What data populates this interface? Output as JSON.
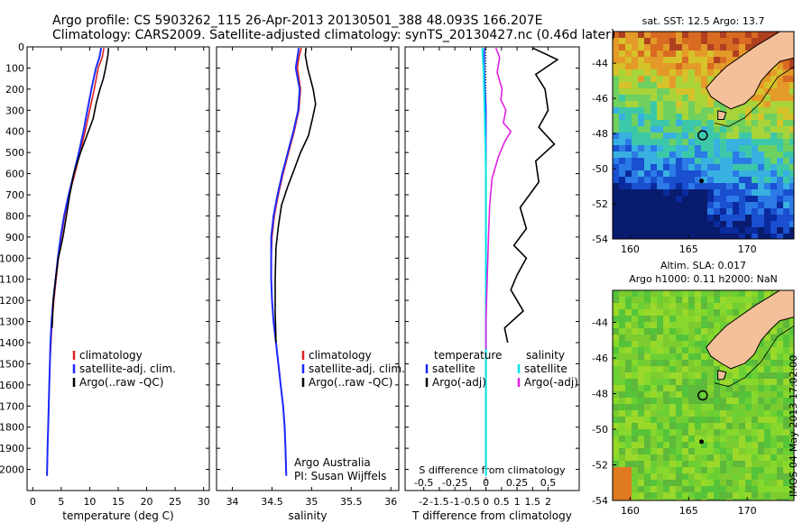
{
  "header": {
    "line1": "Argo profile: CS 5903262_115 26-Apr-2013 20130501_388 48.093S 166.207E",
    "line2": "Climatology: CARS2009. Satellite-adjusted climatology: synTS_20130427.nc (0.46d later)"
  },
  "stamp": "IMOS 04-May-2013 17:02:00",
  "colors": {
    "climatology": "#e02020",
    "satellite": "#1a2bff",
    "argo": "#000000",
    "t_diff_sat": "#00e6e6",
    "s_diff_argo": "#e020e0",
    "sst_warm": "#d4a820",
    "sst_cold": "#0a1a80",
    "sla_green": "#7ad02a",
    "land": "#f4c09a"
  },
  "chart_data": [
    {
      "type": "line",
      "id": "temperature",
      "xlabel": "temperature (deg C)",
      "ylim": [
        2100,
        0
      ],
      "xlim": [
        -1,
        31
      ],
      "xticks": [
        0,
        5,
        10,
        15,
        20,
        25,
        30
      ],
      "yticks": [
        0,
        100,
        200,
        300,
        400,
        500,
        600,
        700,
        800,
        900,
        1000,
        1100,
        1200,
        1300,
        1400,
        1500,
        1600,
        1700,
        1800,
        1900,
        2000
      ],
      "legend": [
        "climatology",
        "satellite-adj. clim.",
        "Argo(..raw -QC)"
      ],
      "series": [
        {
          "name": "climatology",
          "x": [
            12.5,
            12.2,
            11.5,
            10.8,
            10.0,
            9.2,
            8.3,
            7.4,
            6.4,
            5.6,
            5.0,
            4.5,
            4.1,
            3.7,
            3.4,
            3.2,
            3.0,
            2.9,
            2.8,
            2.7,
            2.6,
            2.5
          ],
          "y": [
            5,
            50,
            100,
            200,
            300,
            400,
            500,
            600,
            700,
            800,
            900,
            1000,
            1100,
            1200,
            1300,
            1400,
            1500,
            1600,
            1700,
            1800,
            1900,
            2030
          ]
        },
        {
          "name": "satellite-adj. clim.",
          "x": [
            12.0,
            11.7,
            11.1,
            10.3,
            9.6,
            8.9,
            8.1,
            7.2,
            6.3,
            5.5,
            4.9,
            4.4,
            4.0,
            3.6,
            3.3,
            3.1,
            3.0,
            2.9,
            2.8,
            2.7,
            2.6,
            2.5
          ],
          "y": [
            5,
            50,
            100,
            200,
            300,
            400,
            500,
            600,
            700,
            800,
            900,
            1000,
            1100,
            1200,
            1300,
            1400,
            1500,
            1600,
            1700,
            1800,
            1900,
            2030
          ]
        },
        {
          "name": "Argo(..raw -QC)",
          "x": [
            13.3,
            13.2,
            12.8,
            12.4,
            11.8,
            11.2,
            10.6,
            9.5,
            8.4,
            7.2,
            6.5,
            5.9,
            5.3,
            4.5,
            4.0,
            3.6,
            3.4
          ],
          "y": [
            5,
            40,
            100,
            150,
            200,
            260,
            340,
            420,
            500,
            600,
            700,
            800,
            900,
            1000,
            1100,
            1200,
            1330
          ]
        }
      ]
    },
    {
      "type": "line",
      "id": "salinity",
      "xlabel": "salinity",
      "ylim": [
        2100,
        0
      ],
      "xlim": [
        33.8,
        36.1
      ],
      "xticks": [
        34,
        34.5,
        35,
        35.5,
        36
      ],
      "legend": [
        "climatology",
        "satellite-adj. clim.",
        "Argo(..raw -QC)"
      ],
      "annotation": [
        "Argo Australia",
        "PI: Susan Wijffels"
      ],
      "series": [
        {
          "name": "climatology",
          "x": [
            34.87,
            34.84,
            34.82,
            34.86,
            34.84,
            34.78,
            34.71,
            34.64,
            34.58,
            34.53,
            34.5,
            34.49,
            34.49,
            34.5,
            34.52,
            34.55,
            34.58,
            34.61,
            34.64,
            34.66,
            34.67,
            34.68
          ],
          "y": [
            5,
            50,
            100,
            200,
            300,
            400,
            500,
            600,
            700,
            800,
            900,
            1000,
            1100,
            1200,
            1300,
            1400,
            1500,
            1600,
            1700,
            1800,
            1900,
            2030
          ]
        },
        {
          "name": "satellite-adj. clim.",
          "x": [
            34.84,
            34.82,
            34.8,
            34.85,
            34.83,
            34.77,
            34.7,
            34.63,
            34.57,
            34.52,
            34.49,
            34.49,
            34.49,
            34.5,
            34.52,
            34.55,
            34.58,
            34.61,
            34.64,
            34.66,
            34.67,
            34.68
          ],
          "y": [
            5,
            50,
            100,
            200,
            300,
            400,
            500,
            600,
            700,
            800,
            900,
            1000,
            1100,
            1200,
            1300,
            1400,
            1500,
            1600,
            1700,
            1800,
            1900,
            2030
          ]
        },
        {
          "name": "Argo(..raw -QC)",
          "x": [
            34.93,
            34.92,
            34.95,
            35.02,
            35.05,
            35.01,
            34.96,
            34.86,
            34.78,
            34.7,
            34.62,
            34.58,
            34.55,
            34.54,
            34.54,
            34.55
          ],
          "y": [
            5,
            40,
            100,
            200,
            270,
            340,
            420,
            500,
            580,
            660,
            750,
            850,
            950,
            1100,
            1250,
            1400
          ]
        }
      ]
    },
    {
      "type": "line",
      "id": "difference",
      "xlabel": "T difference from climatology",
      "xlabel_top": "S difference from climatology",
      "ylim": [
        2100,
        0
      ],
      "xlim": [
        -2.6,
        3.0
      ],
      "xticks_bottom": [
        -2,
        -1.5,
        -1,
        -0.5,
        0,
        0.5,
        1,
        1.5,
        2
      ],
      "xticks_top": [
        -0.5,
        -0.25,
        0,
        0.25,
        0.5
      ],
      "legend": [
        "temperature",
        "satellite",
        "Argo(-adj)",
        "salinity",
        "satellite",
        "Argo(-adj)"
      ],
      "series": [
        {
          "name": "temperature satellite",
          "axis": "T",
          "x": [
            -0.05,
            -0.05,
            -0.03,
            0.0,
            0.0,
            0.0,
            0.0,
            0.0,
            0.0,
            0.0
          ],
          "y": [
            5,
            100,
            200,
            300,
            500,
            700,
            1000,
            1400,
            1800,
            2030
          ]
        },
        {
          "name": "temperature Argo(-adj)",
          "axis": "T",
          "x": [
            1.5,
            2.3,
            1.6,
            1.9,
            2.0,
            1.7,
            2.2,
            1.6,
            1.7,
            1.1,
            1.3,
            0.9,
            1.3,
            1.0,
            0.8,
            1.2,
            0.6,
            0.7
          ],
          "y": [
            5,
            60,
            130,
            200,
            300,
            380,
            460,
            540,
            640,
            760,
            860,
            940,
            1000,
            1080,
            1150,
            1250,
            1330,
            1400
          ]
        },
        {
          "name": "salinity satellite",
          "axis": "S",
          "x": [
            -0.03,
            -0.02,
            -0.01,
            0.0,
            0.0,
            0.0,
            0.0
          ],
          "y": [
            5,
            100,
            300,
            600,
            1000,
            1500,
            2030
          ]
        },
        {
          "name": "salinity Argo(-adj)",
          "axis": "S",
          "x": [
            0.08,
            0.11,
            0.09,
            0.13,
            0.12,
            0.16,
            0.14,
            0.2,
            0.15,
            0.1,
            0.05,
            0.03,
            0.02,
            0.01,
            0.0,
            0.0
          ],
          "y": [
            5,
            50,
            120,
            200,
            250,
            300,
            360,
            400,
            450,
            520,
            620,
            750,
            900,
            1100,
            1300,
            1430
          ]
        }
      ]
    },
    {
      "type": "heatmap",
      "id": "sst-map",
      "title": "sat. SST: 12.5 Argo: 13.7",
      "xticks": [
        160,
        165,
        170
      ],
      "yticks": [
        -44,
        -46,
        -48,
        -50,
        -52,
        -54
      ],
      "xlim": [
        158.5,
        174
      ],
      "ylim": [
        -54,
        -42.2
      ],
      "marker": [
        166.2,
        -48.1
      ]
    },
    {
      "type": "heatmap",
      "id": "sla-map",
      "title": "Altim. SLA: 0.017",
      "subtitle": "Argo h1000: 0.11 h2000: NaN",
      "xticks": [
        160,
        165,
        170
      ],
      "yticks": [
        -44,
        -46,
        -48,
        -50,
        -52,
        -54
      ],
      "xlim": [
        158.5,
        174
      ],
      "ylim": [
        -54,
        -42.2
      ],
      "marker": [
        166.2,
        -48.1
      ]
    }
  ]
}
